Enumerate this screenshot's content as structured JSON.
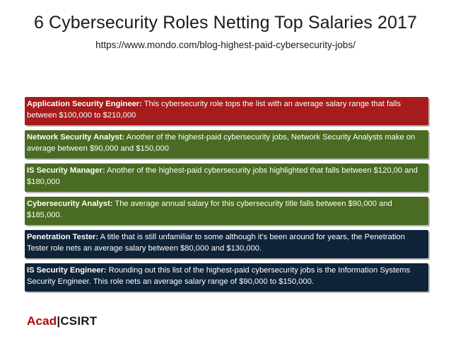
{
  "title": "6 Cybersecurity Roles Netting Top Salaries 2017",
  "subtitle": "https://www.mondo.com/blog-highest-paid-cybersecurity-jobs/",
  "roles": [
    {
      "head": "Application Security Engineer:",
      "text": "This cybersecurity role tops the list with an average salary range that falls between $100,000 to $210,000",
      "color": "#a61b1b"
    },
    {
      "head": "Network Security Analyst:",
      "text": "Another of the highest-paid cybersecurity jobs, Network Security Analysts make on average between $90,000 and $150,000",
      "color": "#4a6b22"
    },
    {
      "head": "IS Security Manager:",
      "text": "Another of the highest-paid cybersecurity jobs highlighted that falls between $120,00 and $180,000",
      "color": "#4a6b22"
    },
    {
      "head": "Cybersecurity Analyst:",
      "text": "The average annual salary for this cybersecurity title falls between $90,000 and $185,000.",
      "color": "#4a6b22"
    },
    {
      "head": "Penetration Tester:",
      "text": "A title that is still unfamiliar to some although it's been around for years, the Penetration Tester role nets an average salary between $80,000 and $130,000.",
      "color": "#0f2339"
    },
    {
      "head": "IS Security Engineer:",
      "text": "Rounding out this list of the highest-paid cybersecurity jobs is the Information Systems Security Engineer. This role nets an average salary range of $90,000 to $150,000.",
      "color": "#0f2339"
    }
  ],
  "logo": {
    "part1": "Acad",
    "part2": "|CSIRT"
  }
}
